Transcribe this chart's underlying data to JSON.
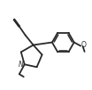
{
  "line_color": "#2a2a2a",
  "line_width": 1.3,
  "fig_width": 1.04,
  "fig_height": 1.01,
  "dpi": 100,
  "xlim": [
    0.0,
    10.5
  ],
  "ylim": [
    0.0,
    10.0
  ]
}
